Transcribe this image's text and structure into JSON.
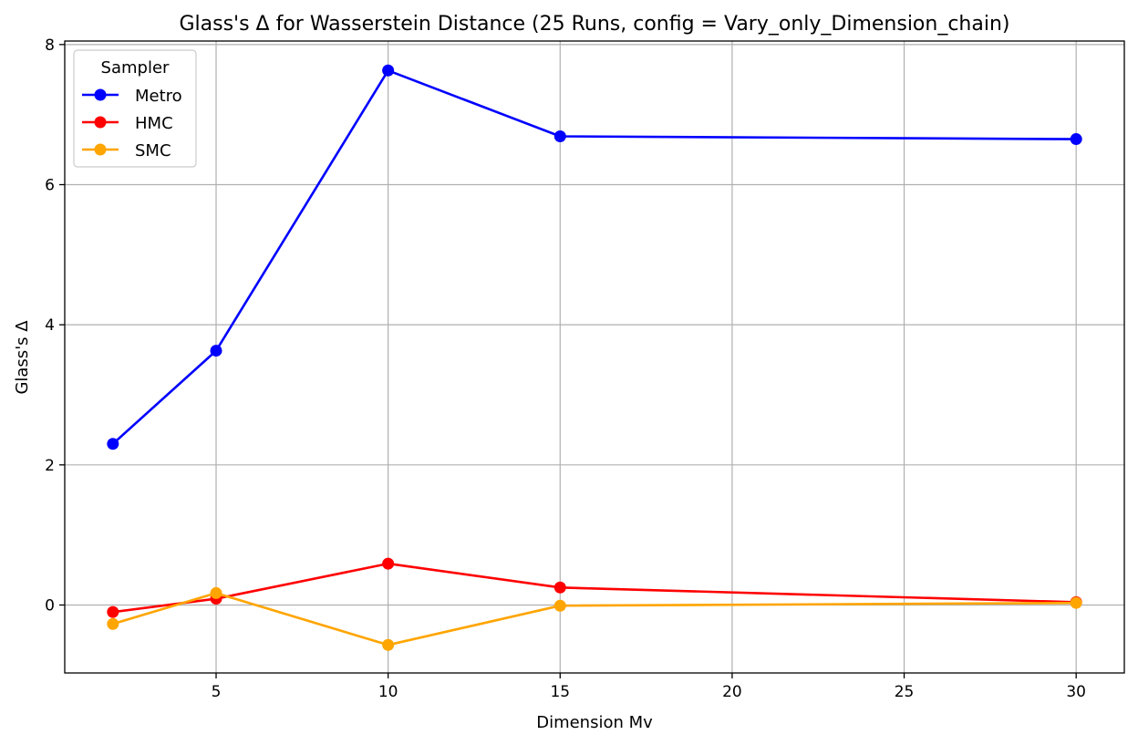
{
  "chart_data": {
    "type": "line",
    "title": "Glass's Δ for Wasserstein Distance (25 Runs, config = Vary_only_Dimension_chain)",
    "xlabel": "Dimension Mv",
    "ylabel": "Glass's Δ",
    "x": [
      2,
      5,
      10,
      15,
      30
    ],
    "xlim": [
      0.6,
      31.4
    ],
    "ylim": [
      -0.97,
      8.05
    ],
    "xticks": [
      5,
      10,
      15,
      20,
      25,
      30
    ],
    "yticks": [
      0,
      2,
      4,
      6,
      8
    ],
    "grid": true,
    "legend": {
      "title": "Sampler",
      "position": "top-left"
    },
    "series": [
      {
        "name": "Metro",
        "color": "#0000ff",
        "values": [
          2.3,
          3.63,
          7.63,
          6.69,
          6.65
        ]
      },
      {
        "name": "HMC",
        "color": "#ff0000",
        "values": [
          -0.1,
          0.09,
          0.59,
          0.25,
          0.04
        ]
      },
      {
        "name": "SMC",
        "color": "#ffa500",
        "values": [
          -0.27,
          0.17,
          -0.57,
          -0.01,
          0.03
        ]
      }
    ]
  }
}
